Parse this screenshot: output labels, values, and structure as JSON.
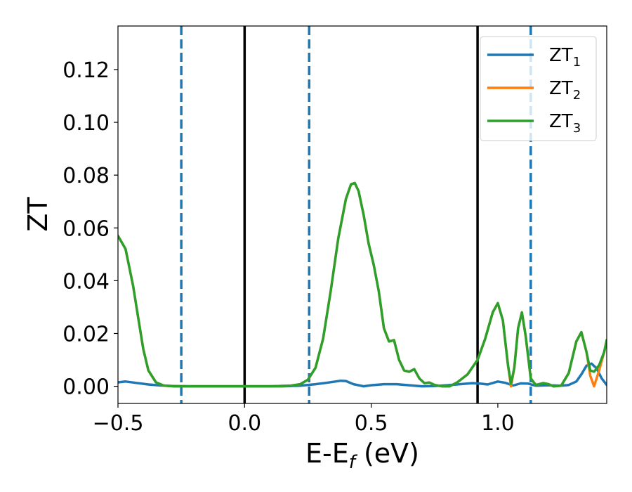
{
  "chart_data": {
    "type": "line",
    "xlabel_main": "E-E",
    "xlabel_sub": "f",
    "xlabel_unit": " (eV)",
    "ylabel": "ZT",
    "xlim": [
      -0.5,
      1.43
    ],
    "ylim": [
      -0.0065,
      0.1365
    ],
    "x_ticks": [
      -0.5,
      0.0,
      0.5,
      1.0
    ],
    "x_tick_labels": [
      "−0.5",
      "0.0",
      "0.5",
      "1.0"
    ],
    "y_ticks": [
      0.0,
      0.02,
      0.04,
      0.06,
      0.08,
      0.1,
      0.12
    ],
    "y_tick_labels": [
      "0.00",
      "0.02",
      "0.04",
      "0.06",
      "0.08",
      "0.10",
      "0.12"
    ],
    "grid": false,
    "legend_position": "top-right",
    "vlines_solid": [
      0.0,
      0.92
    ],
    "vlines_dashed": [
      -0.25,
      0.255,
      1.13
    ],
    "series": [
      {
        "name_main": "ZT",
        "name_sub": "1",
        "color": "#1f77b4",
        "x": [
          -0.5,
          -0.47,
          -0.43,
          -0.38,
          -0.33,
          -0.28,
          -0.22,
          -0.15,
          -0.05,
          0.05,
          0.15,
          0.22,
          0.28,
          0.33,
          0.38,
          0.4,
          0.43,
          0.47,
          0.5,
          0.55,
          0.6,
          0.65,
          0.7,
          0.75,
          0.8,
          0.85,
          0.9,
          0.93,
          0.96,
          1.0,
          1.03,
          1.06,
          1.09,
          1.12,
          1.15,
          1.2,
          1.25,
          1.28,
          1.31,
          1.33,
          1.35,
          1.37,
          1.39,
          1.41,
          1.43
        ],
        "y": [
          0.0015,
          0.0018,
          0.0013,
          0.0007,
          0.0003,
          0.0001,
          0.0,
          0.0,
          0.0,
          0.0,
          0.0,
          0.0002,
          0.0008,
          0.0014,
          0.0021,
          0.002,
          0.0008,
          0.0,
          0.0004,
          0.0008,
          0.0008,
          0.0004,
          0.0,
          0.0001,
          0.0004,
          0.0008,
          0.0012,
          0.001,
          0.0007,
          0.0018,
          0.0013,
          0.0003,
          0.0011,
          0.001,
          0.0002,
          0.0004,
          0.0002,
          0.0005,
          0.0018,
          0.0045,
          0.0078,
          0.0086,
          0.0068,
          0.003,
          0.0005
        ]
      },
      {
        "name_main": "ZT",
        "name_sub": "2",
        "color": "#ff7f0e",
        "x": [
          -0.5,
          -0.47,
          -0.44,
          -0.42,
          -0.4,
          -0.38,
          -0.35,
          -0.32,
          -0.28,
          -0.22,
          -0.1,
          0.1,
          0.18,
          0.22,
          0.25,
          0.28,
          0.31,
          0.34,
          0.37,
          0.4,
          0.42,
          0.435,
          0.45,
          0.47,
          0.49,
          0.51,
          0.53,
          0.55,
          0.57,
          0.59,
          0.61,
          0.63,
          0.65,
          0.67,
          0.69,
          0.71,
          0.73,
          0.75,
          0.78,
          0.81,
          0.84,
          0.88,
          0.92,
          0.95,
          0.98,
          1.0,
          1.02,
          1.04,
          1.052,
          1.065,
          1.08,
          1.095,
          1.11,
          1.13,
          1.15,
          1.18,
          1.2,
          1.22,
          1.25,
          1.28,
          1.31,
          1.33,
          1.35,
          1.365,
          1.38,
          1.4,
          1.42,
          1.43
        ],
        "y": [
          0.057,
          0.052,
          0.038,
          0.026,
          0.014,
          0.006,
          0.0015,
          0.0003,
          0.0,
          0.0,
          0.0,
          0.0,
          0.0002,
          0.0008,
          0.0025,
          0.007,
          0.018,
          0.036,
          0.056,
          0.071,
          0.0765,
          0.077,
          0.074,
          0.065,
          0.054,
          0.046,
          0.036,
          0.022,
          0.017,
          0.0175,
          0.01,
          0.006,
          0.0055,
          0.0065,
          0.003,
          0.0012,
          0.0014,
          0.0005,
          0.0,
          0.0,
          0.0015,
          0.0045,
          0.01,
          0.018,
          0.028,
          0.0315,
          0.025,
          0.008,
          0.0,
          0.007,
          0.022,
          0.028,
          0.019,
          0.003,
          0.0005,
          0.0012,
          0.0008,
          0.0,
          0.0002,
          0.005,
          0.017,
          0.0205,
          0.013,
          0.004,
          0.0,
          0.006,
          0.013,
          0.0175
        ]
      },
      {
        "name_main": "ZT",
        "name_sub": "3",
        "color": "#2ca02c",
        "x": [
          -0.5,
          -0.47,
          -0.44,
          -0.42,
          -0.4,
          -0.38,
          -0.35,
          -0.32,
          -0.28,
          -0.22,
          -0.1,
          0.1,
          0.18,
          0.22,
          0.25,
          0.28,
          0.31,
          0.34,
          0.37,
          0.4,
          0.42,
          0.435,
          0.45,
          0.47,
          0.49,
          0.51,
          0.53,
          0.55,
          0.57,
          0.59,
          0.61,
          0.63,
          0.65,
          0.67,
          0.69,
          0.71,
          0.73,
          0.75,
          0.78,
          0.81,
          0.84,
          0.88,
          0.92,
          0.95,
          0.98,
          1.0,
          1.02,
          1.04,
          1.052,
          1.065,
          1.08,
          1.095,
          1.11,
          1.13,
          1.15,
          1.18,
          1.2,
          1.22,
          1.25,
          1.28,
          1.31,
          1.33,
          1.35,
          1.365,
          1.38,
          1.4,
          1.42,
          1.43
        ],
        "y": [
          0.057,
          0.052,
          0.038,
          0.026,
          0.014,
          0.006,
          0.0015,
          0.0003,
          0.0,
          0.0,
          0.0,
          0.0,
          0.0002,
          0.0008,
          0.0025,
          0.007,
          0.018,
          0.036,
          0.056,
          0.071,
          0.0765,
          0.077,
          0.074,
          0.065,
          0.054,
          0.046,
          0.036,
          0.022,
          0.017,
          0.0175,
          0.01,
          0.006,
          0.0055,
          0.0065,
          0.003,
          0.0012,
          0.0014,
          0.0005,
          0.0,
          0.0,
          0.0015,
          0.0045,
          0.01,
          0.018,
          0.028,
          0.0315,
          0.025,
          0.008,
          0.001,
          0.007,
          0.022,
          0.028,
          0.019,
          0.003,
          0.0005,
          0.0012,
          0.0008,
          0.0,
          0.0002,
          0.005,
          0.017,
          0.0205,
          0.013,
          0.006,
          0.0055,
          0.008,
          0.013,
          0.0175
        ]
      }
    ]
  }
}
